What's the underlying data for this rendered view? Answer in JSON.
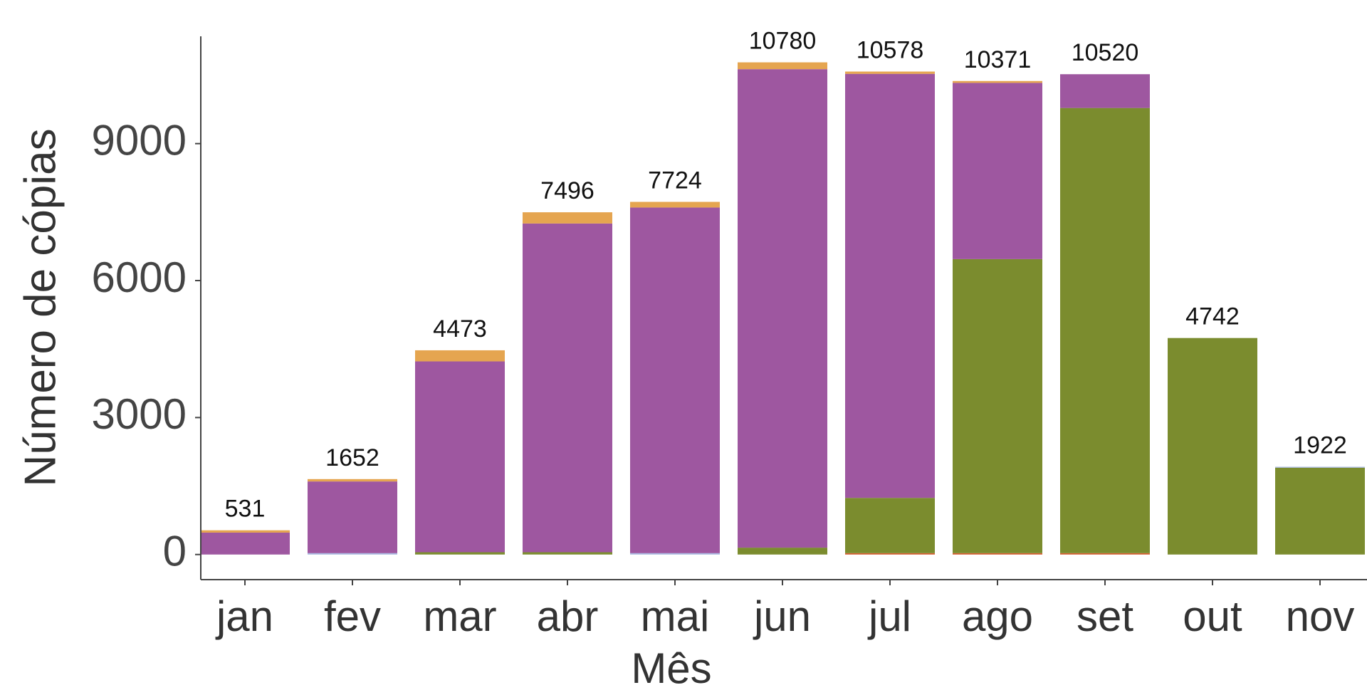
{
  "chart_data": {
    "type": "stacked_bar",
    "x_label": "Mês",
    "y_label": "Número de cópias",
    "categories": [
      "jan",
      "fev",
      "mar",
      "abr",
      "mai",
      "jun",
      "jul",
      "ago",
      "set",
      "out",
      "nov"
    ],
    "series": [
      {
        "color": "#d35b2b",
        "values": [
          0,
          0,
          0,
          0,
          0,
          0,
          30,
          30,
          30,
          0,
          0
        ]
      },
      {
        "color": "#7b8c2e",
        "values": [
          0,
          0,
          50,
          50,
          0,
          150,
          1210,
          6440,
          9750,
          4742,
          1902
        ]
      },
      {
        "color": "#a7b7e0",
        "values": [
          0,
          30,
          0,
          0,
          30,
          0,
          0,
          0,
          0,
          0,
          20
        ]
      },
      {
        "color": "#9e57a0",
        "values": [
          480,
          1570,
          4180,
          7200,
          7570,
          10480,
          9288,
          3860,
          740,
          0,
          0
        ]
      },
      {
        "color": "#e5a550",
        "values": [
          51,
          52,
          243,
          246,
          124,
          150,
          50,
          41,
          0,
          0,
          0
        ]
      }
    ],
    "totals": [
      531,
      1652,
      4473,
      7496,
      7724,
      10780,
      10578,
      10371,
      10520,
      4742,
      1922
    ],
    "ylim": [
      -550,
      11350
    ],
    "yticks": [
      0,
      3000,
      6000,
      9000
    ],
    "grid": false
  }
}
